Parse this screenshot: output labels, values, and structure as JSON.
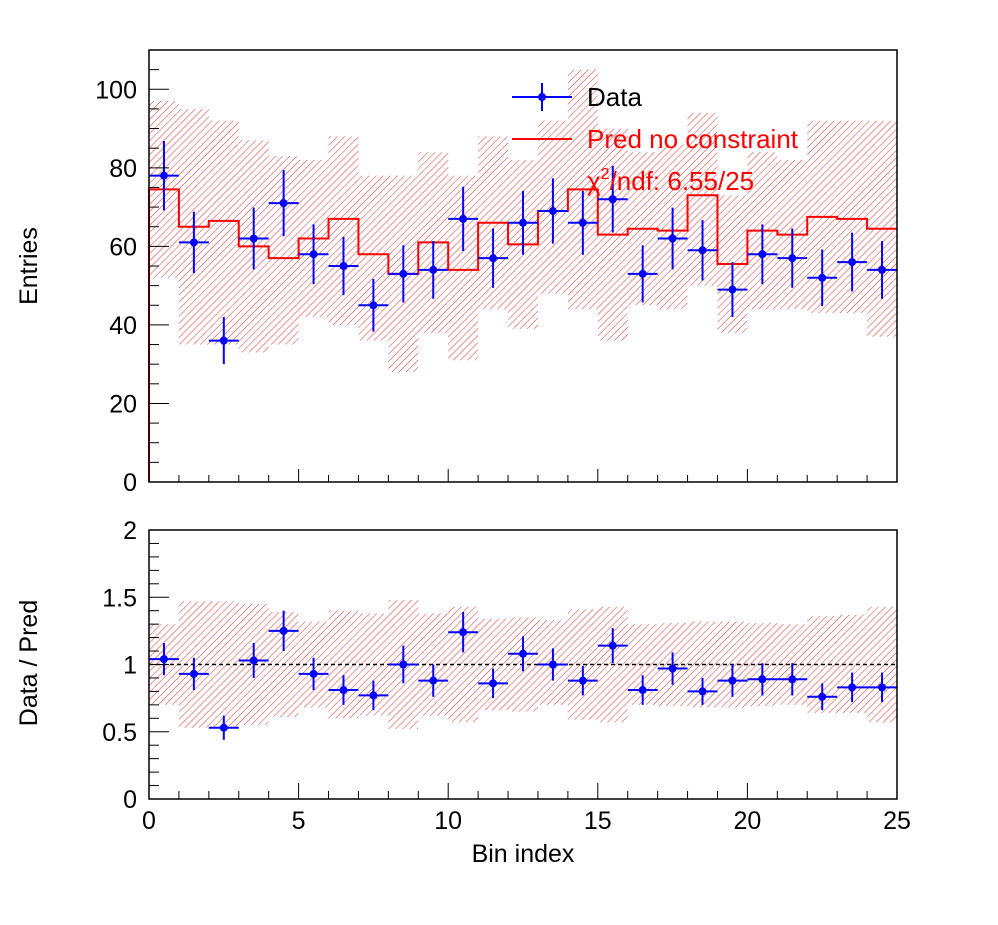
{
  "chart_data": [
    {
      "type": "histogram",
      "ylabel": "Entries",
      "xlim": [
        0,
        25
      ],
      "ylim": [
        0,
        110
      ],
      "yticks": [
        0,
        20,
        40,
        60,
        80,
        100
      ],
      "legend": {
        "placement": "top-right",
        "entries": [
          {
            "label": "Data",
            "color": "#0000ff"
          },
          {
            "label": "Pred no constraint",
            "color": "#ff0000"
          }
        ],
        "chi2_label": "χ",
        "chi2_sup": "2",
        "chi2_rest": "/ndf: 6.55/25"
      },
      "series": [
        {
          "name": "Data",
          "kind": "points_with_errors",
          "color": "#0000ff",
          "x": [
            0.5,
            1.5,
            2.5,
            3.5,
            4.5,
            5.5,
            6.5,
            7.5,
            8.5,
            9.5,
            10.5,
            11.5,
            12.5,
            13.5,
            14.5,
            15.5,
            16.5,
            17.5,
            18.5,
            19.5,
            20.5,
            21.5,
            22.5,
            23.5,
            24.5
          ],
          "values": [
            78,
            61,
            36,
            62,
            71,
            58,
            55,
            45,
            53,
            54,
            67,
            57,
            66,
            69,
            66,
            72,
            53,
            62,
            59,
            49,
            58,
            57,
            52,
            56,
            54
          ]
        },
        {
          "name": "Pred no constraint",
          "kind": "step",
          "color": "#ff0000",
          "values": [
            74.5,
            65,
            66.5,
            60,
            57,
            62,
            67,
            58,
            53,
            61,
            54,
            66,
            60.5,
            69,
            74.5,
            63,
            64.5,
            64,
            73,
            55.5,
            64,
            63,
            67.5,
            67,
            64.5
          ],
          "band_low": [
            52,
            35,
            35,
            33,
            35,
            42,
            40,
            36,
            28,
            38,
            31,
            44,
            39,
            48,
            44,
            36,
            45,
            44,
            50,
            38,
            44,
            44,
            43,
            43,
            37
          ],
          "band_high": [
            97,
            95,
            92,
            87,
            83,
            82,
            88,
            78,
            78,
            84,
            78,
            88,
            82,
            92,
            105,
            90,
            84,
            86,
            94,
            73,
            84,
            82,
            92,
            92,
            92
          ]
        }
      ]
    },
    {
      "type": "ratio",
      "xlabel": "Bin index",
      "ylabel": "Data / Pred",
      "xlim": [
        0,
        25
      ],
      "ylim": [
        0,
        2
      ],
      "xticks": [
        0,
        5,
        10,
        15,
        20,
        25
      ],
      "yticks": [
        "0",
        "0.5",
        "1",
        "1.5",
        "2"
      ],
      "reference_line": 1,
      "series": [
        {
          "name": "Data / Pred",
          "kind": "points_with_errors",
          "color": "#0000ff",
          "values": [
            1.04,
            0.93,
            0.53,
            1.03,
            1.25,
            0.93,
            0.81,
            0.77,
            1.0,
            0.88,
            1.24,
            0.86,
            1.08,
            1.0,
            0.88,
            1.14,
            0.81,
            0.97,
            0.8,
            0.88,
            0.89,
            0.89,
            0.76,
            0.83,
            0.83
          ],
          "errors": [
            0.12,
            0.12,
            0.09,
            0.13,
            0.15,
            0.12,
            0.11,
            0.11,
            0.14,
            0.12,
            0.15,
            0.11,
            0.13,
            0.12,
            0.11,
            0.13,
            0.11,
            0.12,
            0.1,
            0.12,
            0.12,
            0.12,
            0.1,
            0.11,
            0.11
          ]
        }
      ],
      "band_low": [
        0.7,
        0.53,
        0.53,
        0.55,
        0.61,
        0.68,
        0.6,
        0.62,
        0.52,
        0.62,
        0.57,
        0.66,
        0.65,
        0.7,
        0.59,
        0.57,
        0.7,
        0.69,
        0.68,
        0.68,
        0.69,
        0.7,
        0.64,
        0.64,
        0.57
      ],
      "band_high": [
        1.3,
        1.47,
        1.47,
        1.45,
        1.39,
        1.32,
        1.4,
        1.38,
        1.48,
        1.38,
        1.43,
        1.34,
        1.35,
        1.33,
        1.41,
        1.43,
        1.3,
        1.31,
        1.32,
        1.32,
        1.31,
        1.3,
        1.36,
        1.37,
        1.43
      ]
    }
  ]
}
